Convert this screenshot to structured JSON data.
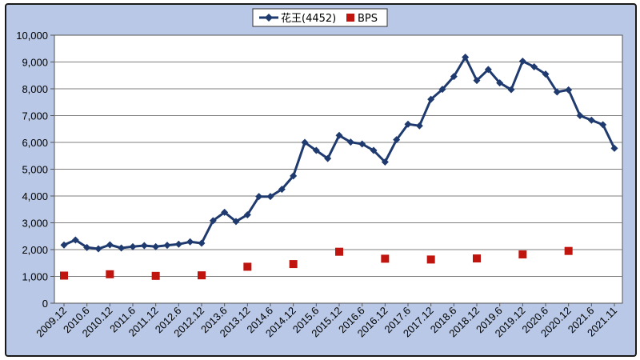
{
  "chart_data": {
    "type": "line",
    "title": "",
    "xlabel": "",
    "ylabel": "",
    "ylim": [
      0,
      10000
    ],
    "yticks": [
      0,
      1000,
      2000,
      3000,
      4000,
      5000,
      6000,
      7000,
      8000,
      9000,
      10000
    ],
    "ytick_labels": [
      "0",
      "1,000",
      "2,000",
      "3,000",
      "4,000",
      "5,000",
      "6,000",
      "7,000",
      "8,000",
      "9,000",
      "10,000"
    ],
    "xtick_labels": [
      "2009.12",
      "2010.6",
      "2010.12",
      "2011.6",
      "2011.12",
      "2012.6",
      "2012.12",
      "2013.6",
      "2013.12",
      "2014.6",
      "2014.12",
      "2015.6",
      "2015.12",
      "2016.6",
      "2016.12",
      "2017.6",
      "2017.12",
      "2018.6",
      "2018.12",
      "2019.6",
      "2019.12",
      "2020.6",
      "2020.12",
      "2021.6",
      "2021.11"
    ],
    "grid": true,
    "legend_position": "top-center",
    "series": [
      {
        "name": "花王(4452)",
        "type": "line",
        "marker": "diamond",
        "color": "#1f3a6e",
        "values": [
          2170,
          2360,
          2080,
          2030,
          2180,
          2060,
          2110,
          2150,
          2110,
          2160,
          2200,
          2290,
          2240,
          3080,
          3390,
          3050,
          3300,
          3980,
          3980,
          4250,
          4750,
          6000,
          5700,
          5400,
          6260,
          6010,
          5940,
          5700,
          5270,
          6100,
          6680,
          6620,
          7610,
          7980,
          8460,
          9180,
          8310,
          8720,
          8220,
          7970,
          9030,
          8820,
          8550,
          7880,
          7960,
          7000,
          6830,
          6660,
          5780
        ]
      },
      {
        "name": "BPS",
        "type": "scatter",
        "marker": "square",
        "color": "#c0140f",
        "points": [
          {
            "x": "2009.12",
            "y": 1030
          },
          {
            "x": "2010.12",
            "y": 1080
          },
          {
            "x": "2011.12",
            "y": 1020
          },
          {
            "x": "2012.12",
            "y": 1040
          },
          {
            "x": "2013.12",
            "y": 1360
          },
          {
            "x": "2014.12",
            "y": 1460
          },
          {
            "x": "2015.12",
            "y": 1920
          },
          {
            "x": "2016.12",
            "y": 1660
          },
          {
            "x": "2017.12",
            "y": 1630
          },
          {
            "x": "2018.12",
            "y": 1670
          },
          {
            "x": "2019.12",
            "y": 1820
          },
          {
            "x": "2020.12",
            "y": 1950
          }
        ]
      }
    ]
  }
}
